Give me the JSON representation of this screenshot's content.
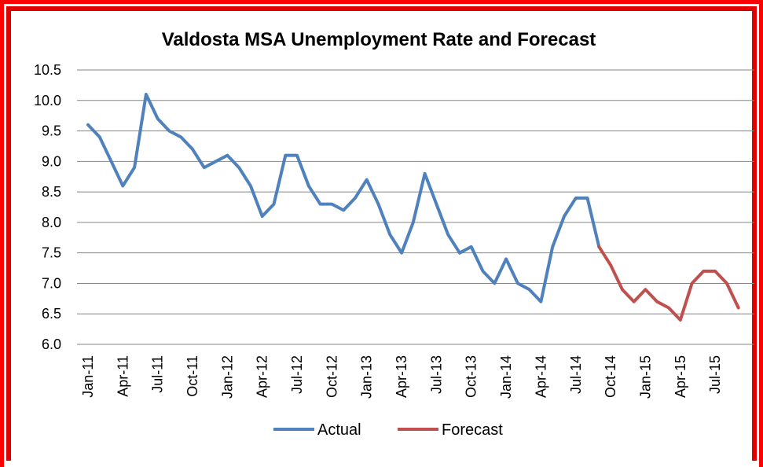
{
  "chart_data": {
    "type": "line",
    "title": "Valdosta MSA Unemployment Rate and Forecast",
    "xlabel": "",
    "ylabel": "",
    "ylim": [
      6.0,
      10.5
    ],
    "yticks": [
      "6.0",
      "6.5",
      "7.0",
      "7.5",
      "8.0",
      "8.5",
      "9.0",
      "9.5",
      "10.0",
      "10.5"
    ],
    "grid": true,
    "legend_position": "bottom",
    "x": [
      "Jan-11",
      "Feb-11",
      "Mar-11",
      "Apr-11",
      "May-11",
      "Jun-11",
      "Jul-11",
      "Aug-11",
      "Sep-11",
      "Oct-11",
      "Nov-11",
      "Dec-11",
      "Jan-12",
      "Feb-12",
      "Mar-12",
      "Apr-12",
      "May-12",
      "Jun-12",
      "Jul-12",
      "Aug-12",
      "Sep-12",
      "Oct-12",
      "Nov-12",
      "Dec-12",
      "Jan-13",
      "Feb-13",
      "Mar-13",
      "Apr-13",
      "May-13",
      "Jun-13",
      "Jul-13",
      "Aug-13",
      "Sep-13",
      "Oct-13",
      "Nov-13",
      "Dec-13",
      "Jan-14",
      "Feb-14",
      "Mar-14",
      "Apr-14",
      "May-14",
      "Jun-14",
      "Jul-14",
      "Aug-14",
      "Sep-14",
      "Oct-14",
      "Nov-14",
      "Dec-14",
      "Jan-15",
      "Feb-15",
      "Mar-15",
      "Apr-15",
      "May-15",
      "Jun-15",
      "Jul-15",
      "Aug-15",
      "Sep-15"
    ],
    "xtick_labels": [
      "Jan-11",
      "Apr-11",
      "Jul-11",
      "Oct-11",
      "Jan-12",
      "Apr-12",
      "Jul-12",
      "Oct-12",
      "Jan-13",
      "Apr-13",
      "Jul-13",
      "Oct-13",
      "Jan-14",
      "Apr-14",
      "Jul-14",
      "Oct-14",
      "Jan-15",
      "Apr-15",
      "Jul-15"
    ],
    "series": [
      {
        "name": "Actual",
        "color": "#4f81bd",
        "values": [
          9.6,
          9.4,
          9.0,
          8.6,
          8.9,
          10.1,
          9.7,
          9.5,
          9.4,
          9.2,
          8.9,
          9.0,
          9.1,
          8.9,
          8.6,
          8.1,
          8.3,
          9.1,
          9.1,
          8.6,
          8.3,
          8.3,
          8.2,
          8.4,
          8.7,
          8.3,
          7.8,
          7.5,
          8.0,
          8.8,
          8.3,
          7.8,
          7.5,
          7.6,
          7.2,
          7.0,
          7.4,
          7.0,
          6.9,
          6.7,
          7.6,
          8.1,
          8.4,
          8.4,
          7.6,
          null,
          null,
          null,
          null,
          null,
          null,
          null,
          null,
          null,
          null,
          null,
          null
        ]
      },
      {
        "name": "Forecast",
        "color": "#c0504d",
        "values": [
          null,
          null,
          null,
          null,
          null,
          null,
          null,
          null,
          null,
          null,
          null,
          null,
          null,
          null,
          null,
          null,
          null,
          null,
          null,
          null,
          null,
          null,
          null,
          null,
          null,
          null,
          null,
          null,
          null,
          null,
          null,
          null,
          null,
          null,
          null,
          null,
          null,
          null,
          null,
          null,
          null,
          null,
          null,
          null,
          7.6,
          7.3,
          6.9,
          6.7,
          6.9,
          6.7,
          6.6,
          6.4,
          7.0,
          7.2,
          7.2,
          7.0,
          6.6
        ]
      }
    ]
  }
}
